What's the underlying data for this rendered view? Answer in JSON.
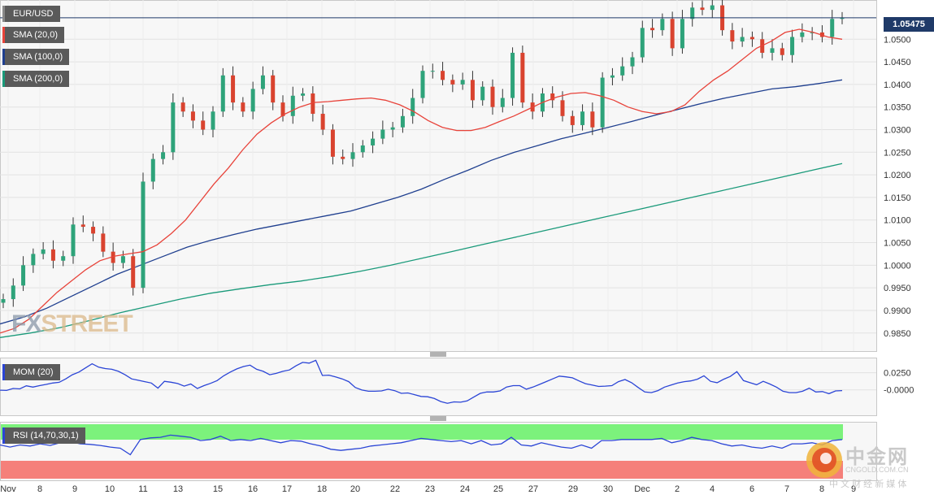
{
  "symbol": "EUR/USD",
  "indicators": {
    "sma20": {
      "label": "SMA (20,0)",
      "color": "#e8433a"
    },
    "sma100": {
      "label": "SMA (100,0)",
      "color": "#1f3f8f"
    },
    "sma200": {
      "label": "SMA (200,0)",
      "color": "#1a9a7a"
    },
    "mom": {
      "label": "MOM (20)",
      "color": "#2b45d6"
    },
    "rsi": {
      "label": "RSI (14,70,30,1)",
      "color": "#2b45d6"
    }
  },
  "last_price": "1.05475",
  "watermark": {
    "fx": "FX",
    "street": "STREET"
  },
  "cngold": {
    "brand": "中金网",
    "domain": "CNGOLD.COM.CN",
    "tagline": "中 文 财 经 新 媒 体"
  },
  "chart_data": [
    {
      "type": "candlestick",
      "title": "EUR/USD",
      "x_labels": [
        "Nov",
        "8",
        "9",
        "10",
        "11",
        "13",
        "15",
        "16",
        "17",
        "18",
        "20",
        "22",
        "23",
        "24",
        "25",
        "27",
        "29",
        "30",
        "Dec",
        "2",
        "4",
        "6",
        "7",
        "8",
        "9"
      ],
      "y_ticks": [
        "1.0500",
        "1.0450",
        "1.0400",
        "1.0350",
        "1.0300",
        "1.0250",
        "1.0200",
        "1.0150",
        "1.0100",
        "1.0050",
        "1.0000",
        "0.9950",
        "0.9900",
        "0.9850"
      ],
      "ylim": [
        0.981,
        1.0585
      ],
      "last_price": 1.05475,
      "grid": true,
      "close_series": [
        0.9925,
        0.9955,
        1.0,
        1.0025,
        1.0035,
        1.001,
        1.002,
        1.009,
        1.0085,
        1.007,
        1.003,
        1.0005,
        1.002,
        0.995,
        1.0185,
        1.0235,
        1.025,
        1.036,
        1.034,
        1.032,
        1.03,
        1.034,
        1.042,
        1.036,
        1.034,
        1.039,
        1.042,
        1.036,
        1.033,
        1.0375,
        1.038,
        1.0335,
        1.03,
        1.024,
        1.0235,
        1.025,
        1.0265,
        1.028,
        1.03,
        1.0305,
        1.033,
        1.037,
        1.043,
        1.043,
        1.041,
        1.04,
        1.041,
        1.0365,
        1.0395,
        1.035,
        1.037,
        1.047,
        1.036,
        1.034,
        1.038,
        1.0365,
        1.033,
        1.031,
        1.034,
        1.0305,
        1.0415,
        1.042,
        1.044,
        1.046,
        1.0525,
        1.052,
        1.0545,
        1.048,
        1.0545,
        1.057,
        1.0565,
        1.0575,
        1.052,
        1.0495,
        1.0505,
        1.05,
        1.047,
        1.048,
        1.0465,
        1.0505,
        1.0515,
        1.0515,
        1.0505,
        1.0545,
        1.0548
      ],
      "sma20": [
        0.985,
        0.986,
        0.988,
        0.991,
        0.994,
        0.9965,
        0.999,
        1.001,
        1.002,
        1.0025,
        1.003,
        1.0045,
        1.007,
        1.01,
        1.014,
        1.018,
        1.0215,
        1.0255,
        1.029,
        1.0315,
        1.0335,
        1.035,
        1.036,
        1.0362,
        1.0365,
        1.0368,
        1.037,
        1.0365,
        1.0355,
        1.034,
        1.032,
        1.0305,
        1.0298,
        1.0298,
        1.0305,
        1.0318,
        1.033,
        1.0345,
        1.036,
        1.0372,
        1.038,
        1.0382,
        1.0375,
        1.0365,
        1.035,
        1.034,
        1.0335,
        1.034,
        1.0355,
        1.0385,
        1.041,
        1.043,
        1.0455,
        1.048,
        1.0495,
        1.0515,
        1.0522,
        1.0515,
        1.0505,
        1.05
      ],
      "sma100": [
        0.987,
        0.9885,
        0.9905,
        0.993,
        0.9955,
        0.998,
        1.0,
        1.002,
        1.004,
        1.0055,
        1.0068,
        1.008,
        1.009,
        1.01,
        1.011,
        1.012,
        1.0135,
        1.015,
        1.0168,
        1.019,
        1.021,
        1.0232,
        1.025,
        1.0265,
        1.028,
        1.0292,
        1.0305,
        1.0318,
        1.0332,
        1.0345,
        1.0358,
        1.037,
        1.038,
        1.039,
        1.0395,
        1.0402,
        1.041
      ],
      "sma200": [
        0.984,
        0.985,
        0.9862,
        0.9878,
        0.9895,
        0.991,
        0.9925,
        0.9938,
        0.9948,
        0.9957,
        0.9965,
        0.9975,
        0.9987,
        1.0,
        1.0015,
        1.003,
        1.0045,
        1.006,
        1.0075,
        1.009,
        1.0105,
        1.012,
        1.0135,
        1.015,
        1.0165,
        1.018,
        1.0195,
        1.021,
        1.0225
      ]
    },
    {
      "type": "line",
      "title": "MOM (20)",
      "y_ticks": [
        "0.0250",
        "-0.0000"
      ],
      "ylim": [
        -0.037,
        0.047
      ],
      "values": [
        -0.0005,
        -0.0008,
        0.002,
        0.0015,
        0.006,
        0.004,
        0.0062,
        0.008,
        0.01,
        0.011,
        0.016,
        0.022,
        0.026,
        0.032,
        0.038,
        0.033,
        0.031,
        0.03,
        0.027,
        0.022,
        0.016,
        0.014,
        0.012,
        0.01,
        0.0025,
        0.0125,
        0.0112,
        0.0092,
        0.0055,
        0.0085,
        0.002,
        0.0062,
        0.0095,
        0.0135,
        0.0205,
        0.026,
        0.0305,
        0.034,
        0.036,
        0.03,
        0.027,
        0.022,
        0.024,
        0.027,
        0.029,
        0.035,
        0.04,
        0.039,
        0.043,
        0.021,
        0.0215,
        0.019,
        0.016,
        0.012,
        0.0035,
        -0.0002,
        -0.002,
        -0.002,
        -0.0015,
        0.001,
        -0.0012,
        -0.005,
        -0.0045,
        -0.007,
        -0.0095,
        -0.01,
        -0.0125,
        -0.017,
        -0.0195,
        -0.0175,
        -0.018,
        -0.016,
        -0.0105,
        -0.005,
        -0.003,
        -0.003,
        -0.0015,
        0.0042,
        0.0062,
        0.0062,
        0.001,
        0.004,
        0.008,
        0.012,
        0.016,
        0.02,
        0.019,
        0.0175,
        0.013,
        0.009,
        0.007,
        0.005,
        0.0055,
        0.0062,
        0.012,
        0.015,
        0.0105,
        0.0035,
        -0.003,
        -0.004,
        -0.001,
        0.004,
        0.007,
        0.01,
        0.012,
        0.013,
        0.0155,
        0.0205,
        0.0125,
        0.0105,
        0.0155,
        0.0195,
        0.0265,
        0.0135,
        0.0105,
        0.0075,
        0.0125,
        0.0085,
        0.004,
        -0.002,
        -0.004,
        -0.004,
        -0.002,
        0.0025,
        -0.003,
        -0.0025,
        -0.0055,
        -0.0015,
        -0.001
      ]
    },
    {
      "type": "line",
      "title": "RSI (14,70,30,1)",
      "ylim": [
        0,
        100
      ],
      "values": [
        62,
        58,
        62,
        60,
        64,
        61,
        66,
        68,
        64,
        63,
        61,
        58,
        56,
        44,
        72,
        75,
        76,
        80,
        78,
        76,
        70,
        72,
        78,
        70,
        72,
        70,
        74,
        70,
        66,
        70,
        69,
        64,
        60,
        54,
        52,
        54,
        56,
        60,
        62,
        64,
        66,
        70,
        74,
        72,
        70,
        68,
        70,
        64,
        70,
        62,
        64,
        76,
        62,
        60,
        66,
        62,
        58,
        56,
        62,
        56,
        70,
        70,
        72,
        72,
        72,
        72,
        74,
        66,
        70,
        76,
        72,
        70,
        64,
        60,
        62,
        58,
        56,
        60,
        56,
        64,
        64,
        66,
        62,
        70,
        72
      ]
    }
  ]
}
